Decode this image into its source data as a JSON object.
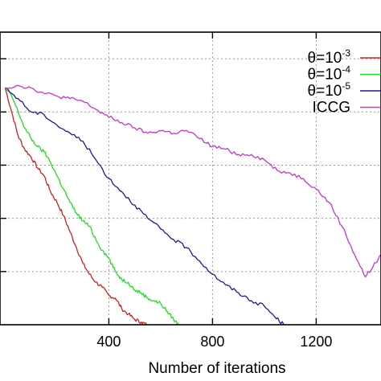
{
  "chart_data": {
    "type": "line",
    "title": "",
    "xlabel": "Number of iterations",
    "ylabel": "",
    "xlim": [
      -20,
      1450
    ],
    "ylim": [
      -1.0,
      4.5
    ],
    "grid": true,
    "legend_position": "top-right",
    "x_ticks": [
      {
        "value": 400,
        "label": "400"
      },
      {
        "value": 800,
        "label": "800"
      },
      {
        "value": 1200,
        "label": "1200"
      }
    ],
    "y_gridlines": [
      0,
      1,
      2,
      3,
      4
    ],
    "series": [
      {
        "name": "θ=10-3",
        "color": "#cc2222",
        "legend_base": "θ=10",
        "legend_sup": "-3",
        "x": [
          0,
          25,
          50,
          75,
          100,
          125,
          150,
          175,
          200,
          225,
          250,
          275,
          300,
          325,
          350,
          375,
          400,
          425,
          450,
          475,
          500,
          525,
          545
        ],
        "y": [
          3.45,
          3.0,
          2.55,
          2.3,
          2.15,
          1.95,
          1.8,
          1.5,
          1.3,
          1.05,
          0.75,
          0.45,
          0.15,
          -0.05,
          -0.2,
          -0.3,
          -0.45,
          -0.5,
          -0.7,
          -0.8,
          -0.9,
          -0.95,
          -1.0
        ]
      },
      {
        "name": "θ=10-4",
        "color": "#22dd22",
        "legend_base": "θ=10",
        "legend_sup": "-4",
        "x": [
          0,
          25,
          50,
          75,
          100,
          125,
          150,
          175,
          200,
          225,
          250,
          275,
          300,
          325,
          350,
          375,
          400,
          425,
          450,
          475,
          500,
          525,
          550,
          575,
          600,
          625,
          650,
          670
        ],
        "y": [
          3.45,
          3.3,
          3.0,
          2.7,
          2.5,
          2.35,
          2.25,
          2.05,
          1.8,
          1.55,
          1.3,
          1.1,
          0.95,
          0.85,
          0.6,
          0.4,
          0.25,
          0.0,
          -0.15,
          -0.2,
          -0.35,
          -0.4,
          -0.5,
          -0.55,
          -0.6,
          -0.75,
          -0.9,
          -1.0
        ]
      },
      {
        "name": "θ=10-5",
        "color": "#1a1a99",
        "legend_base": "θ=10",
        "legend_sup": "-5",
        "x": [
          0,
          50,
          100,
          150,
          200,
          250,
          300,
          350,
          400,
          450,
          500,
          550,
          600,
          650,
          700,
          750,
          800,
          850,
          900,
          950,
          1000,
          1040,
          1075
        ],
        "y": [
          3.45,
          3.25,
          3.0,
          2.95,
          2.75,
          2.6,
          2.45,
          2.1,
          1.75,
          1.5,
          1.25,
          1.0,
          0.8,
          0.6,
          0.45,
          0.2,
          -0.05,
          -0.25,
          -0.4,
          -0.55,
          -0.65,
          -0.85,
          -1.0
        ]
      },
      {
        "name": "ICCG",
        "color": "#cc33cc",
        "legend_base": "ICCG",
        "legend_sup": "",
        "x": [
          0,
          50,
          100,
          150,
          200,
          250,
          300,
          350,
          400,
          450,
          500,
          550,
          600,
          650,
          700,
          750,
          800,
          850,
          900,
          950,
          1000,
          1050,
          1100,
          1150,
          1200,
          1250,
          1300,
          1350,
          1390,
          1420,
          1450
        ],
        "y": [
          3.45,
          3.5,
          3.45,
          3.35,
          3.3,
          3.25,
          3.2,
          3.05,
          2.9,
          2.8,
          2.7,
          2.6,
          2.65,
          2.6,
          2.65,
          2.5,
          2.35,
          2.3,
          2.2,
          2.2,
          2.1,
          1.9,
          1.85,
          1.75,
          1.55,
          1.3,
          0.85,
          0.3,
          -0.1,
          0.1,
          0.3
        ]
      }
    ]
  }
}
